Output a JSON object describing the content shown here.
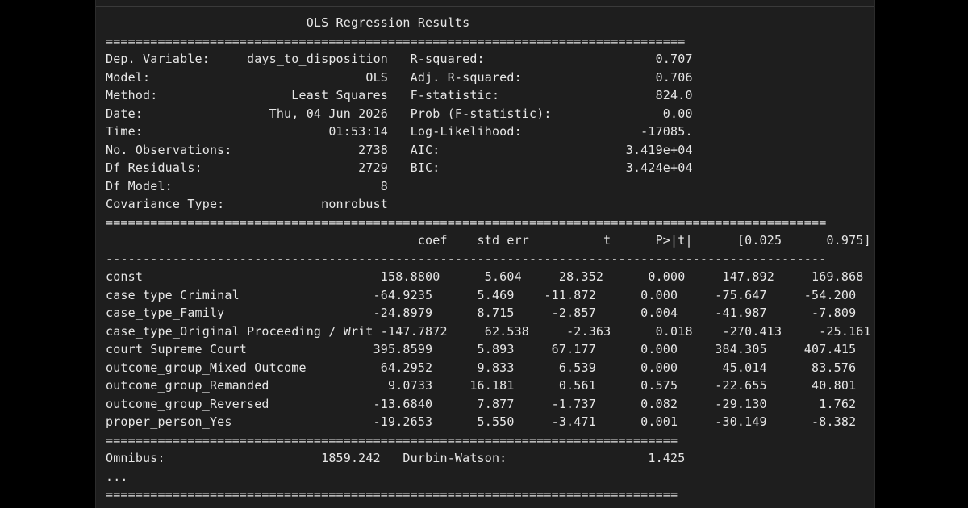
{
  "output": {
    "lines": [
      "                           OLS Regression Results                            ",
      "==============================================================================",
      "Dep. Variable:     days_to_disposition   R-squared:                       0.707",
      "Model:                             OLS   Adj. R-squared:                  0.706",
      "Method:                  Least Squares   F-statistic:                     824.0",
      "Date:                 Thu, 04 Jun 2026   Prob (F-statistic):               0.00",
      "Time:                         01:53:14   Log-Likelihood:                -17085.",
      "No. Observations:                 2738   AIC:                         3.419e+04",
      "Df Residuals:                     2729   BIC:                         3.424e+04",
      "Df Model:                            8                                         ",
      "Covariance Type:             nonrobust                                         ",
      "=================================================================================================",
      "                                          coef    std err          t      P>|t|      [0.025      0.975]",
      "-------------------------------------------------------------------------------------------------",
      "const                                158.8800      5.604     28.352      0.000     147.892     169.868",
      "case_type_Criminal                  -64.9235      5.469    -11.872      0.000     -75.647     -54.200",
      "case_type_Family                    -24.8979      8.715     -2.857      0.004     -41.987      -7.809",
      "case_type_Original Proceeding / Writ -147.7872     62.538     -2.363      0.018    -270.413     -25.161",
      "court_Supreme Court                 395.8599      5.893     67.177      0.000     384.305     407.415",
      "outcome_group_Mixed Outcome          64.2952      9.833      6.539      0.000      45.014      83.576",
      "outcome_group_Remanded                9.0733     16.181      0.561      0.575     -22.655      40.801",
      "outcome_group_Reversed              -13.6840      7.877     -1.737      0.082     -29.130       1.762",
      "proper_person_Yes                   -19.2653      5.550     -3.471      0.001     -30.149      -8.382",
      "=============================================================================",
      "Omnibus:                     1859.242   Durbin-Watson:                   1.425",
      "...",
      "============================================================================="
    ]
  }
}
